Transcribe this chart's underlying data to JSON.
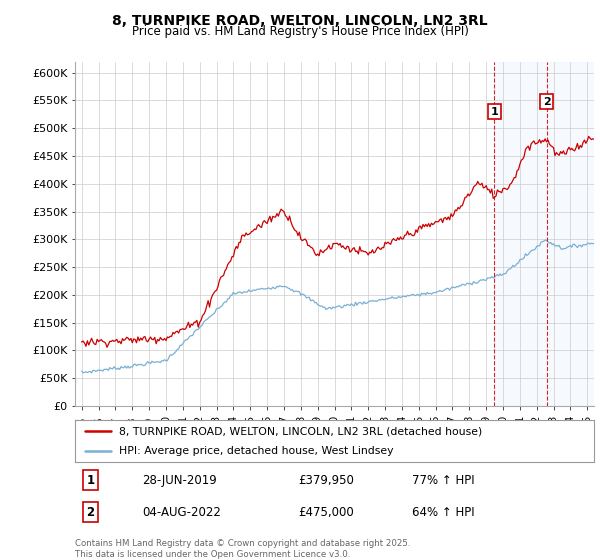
{
  "title": "8, TURNPIKE ROAD, WELTON, LINCOLN, LN2 3RL",
  "subtitle": "Price paid vs. HM Land Registry's House Price Index (HPI)",
  "ylabel_ticks": [
    "£0",
    "£50K",
    "£100K",
    "£150K",
    "£200K",
    "£250K",
    "£300K",
    "£350K",
    "£400K",
    "£450K",
    "£500K",
    "£550K",
    "£600K"
  ],
  "ytick_values": [
    0,
    50000,
    100000,
    150000,
    200000,
    250000,
    300000,
    350000,
    400000,
    450000,
    500000,
    550000,
    600000
  ],
  "ylim": [
    0,
    620000
  ],
  "xlim_start": 1994.6,
  "xlim_end": 2025.4,
  "red_color": "#cc0000",
  "blue_color": "#7ab0d4",
  "marker1_x": 2019.49,
  "marker1_y": 379950,
  "marker2_x": 2022.59,
  "marker2_y": 475000,
  "marker1_label": "1",
  "marker2_label": "2",
  "legend_line1": "8, TURNPIKE ROAD, WELTON, LINCOLN, LN2 3RL (detached house)",
  "legend_line2": "HPI: Average price, detached house, West Lindsey",
  "table_row1": [
    "1",
    "28-JUN-2019",
    "£379,950",
    "77% ↑ HPI"
  ],
  "table_row2": [
    "2",
    "04-AUG-2022",
    "£475,000",
    "64% ↑ HPI"
  ],
  "footer": "Contains HM Land Registry data © Crown copyright and database right 2025.\nThis data is licensed under the Open Government Licence v3.0.",
  "vline1_x": 2019.49,
  "vline2_x": 2022.59,
  "background_color": "#ffffff",
  "grid_color": "#cccccc",
  "shade_color": "#ddeeff"
}
